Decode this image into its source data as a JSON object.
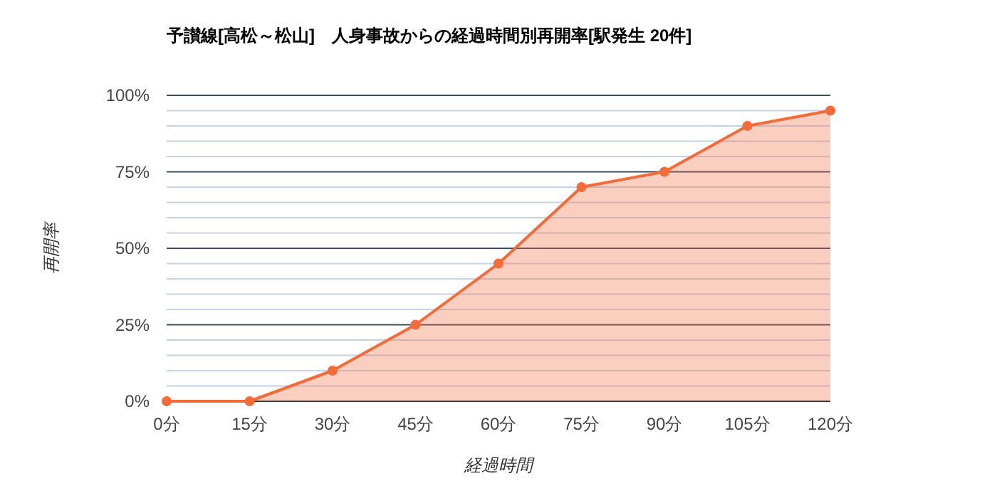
{
  "chart_data": {
    "type": "area",
    "title": "予讃線[高松～松山]　人身事故からの経過時間別再開率[駅発生 20件]",
    "xlabel": "経過時間",
    "ylabel": "再開率",
    "categories": [
      "0分",
      "15分",
      "30分",
      "45分",
      "60分",
      "75分",
      "90分",
      "105分",
      "120分"
    ],
    "series": [
      {
        "color": "#f26b38",
        "values": [
          0,
          0,
          10,
          25,
          45,
          70,
          75,
          90,
          95
        ]
      }
    ],
    "ylim": [
      0,
      100
    ],
    "yticks": [
      {
        "value": 0,
        "label": "0%"
      },
      {
        "value": 5,
        "label": null
      },
      {
        "value": 10,
        "label": null
      },
      {
        "value": 15,
        "label": null
      },
      {
        "value": 20,
        "label": null
      },
      {
        "value": 25,
        "label": "25%"
      },
      {
        "value": 30,
        "label": null
      },
      {
        "value": 35,
        "label": null
      },
      {
        "value": 40,
        "label": null
      },
      {
        "value": 45,
        "label": null
      },
      {
        "value": 50,
        "label": "50%"
      },
      {
        "value": 55,
        "label": null
      },
      {
        "value": 60,
        "label": null
      },
      {
        "value": 65,
        "label": null
      },
      {
        "value": 70,
        "label": null
      },
      {
        "value": 75,
        "label": "75%"
      },
      {
        "value": 80,
        "label": null
      },
      {
        "value": 85,
        "label": null
      },
      {
        "value": 90,
        "label": null
      },
      {
        "value": 95,
        "label": null
      },
      {
        "value": 100,
        "label": "100%"
      }
    ],
    "grid": "y",
    "marker": "circle",
    "line_style": "solid"
  }
}
